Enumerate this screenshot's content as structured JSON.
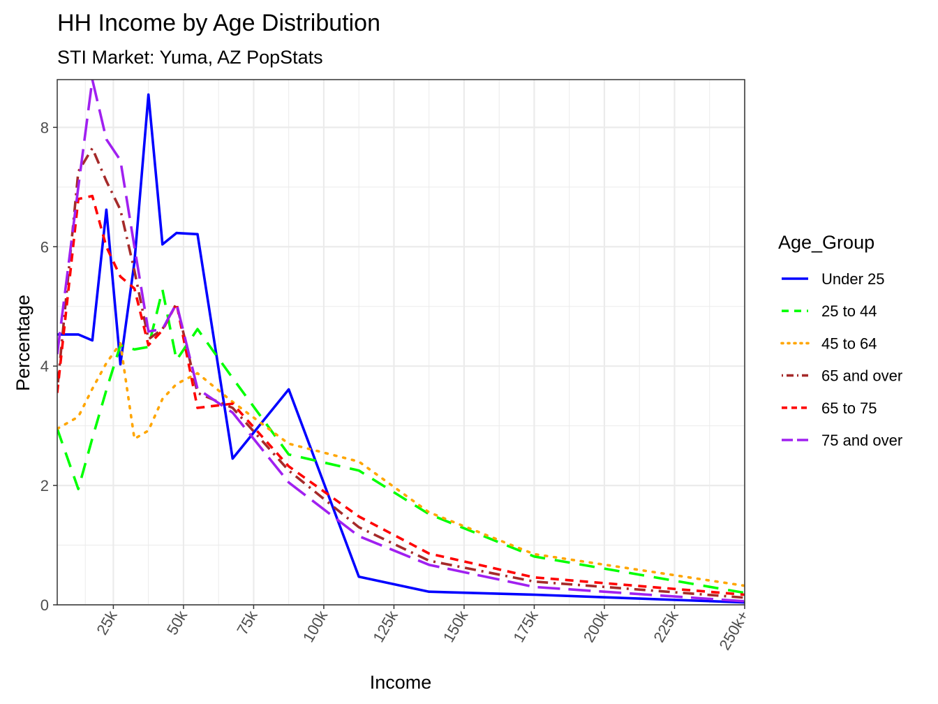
{
  "chart_data": {
    "type": "line",
    "title": "HH Income by Age Distribution",
    "subtitle": "STI Market: Yuma, AZ PopStats",
    "xlabel": "Income",
    "ylabel": "Percentage",
    "xlim": [
      5000,
      250000
    ],
    "ylim": [
      0,
      8.8
    ],
    "x_ticks": [
      25000,
      50000,
      75000,
      100000,
      125000,
      150000,
      175000,
      200000,
      225000,
      250000
    ],
    "x_tick_labels": [
      "25k",
      "50k",
      "75k",
      "100k",
      "125k",
      "150k",
      "175k",
      "200k",
      "225k",
      "250k+"
    ],
    "y_ticks": [
      0,
      2,
      4,
      6,
      8
    ],
    "y_tick_labels": [
      "0",
      "2",
      "4",
      "6",
      "8"
    ],
    "grid": true,
    "legend": {
      "title": "Age_Group",
      "position": "right"
    },
    "x": [
      5000,
      12500,
      17500,
      22500,
      27500,
      32500,
      37500,
      42500,
      47500,
      55000,
      67500,
      87500,
      112500,
      137500,
      175000,
      250000
    ],
    "series": [
      {
        "name": "Under 25",
        "color": "#0000ff",
        "dash": "solid",
        "values": [
          4.53,
          4.53,
          4.43,
          6.62,
          4.03,
          5.74,
          8.55,
          6.04,
          6.23,
          6.21,
          2.45,
          3.61,
          0.47,
          0.22,
          0.17,
          0.04
        ]
      },
      {
        "name": "25 to 44",
        "color": "#00ff00",
        "dash": "dashed",
        "values": [
          2.95,
          1.94,
          2.79,
          3.6,
          4.35,
          4.28,
          4.32,
          5.28,
          4.1,
          4.62,
          3.8,
          2.52,
          2.25,
          1.52,
          0.81,
          0.2
        ]
      },
      {
        "name": "45 to 64",
        "color": "#ffa500",
        "dash": "dotted",
        "values": [
          2.95,
          3.15,
          3.62,
          4.05,
          4.38,
          2.78,
          2.92,
          3.45,
          3.7,
          3.88,
          3.4,
          2.7,
          2.4,
          1.55,
          0.85,
          0.32
        ]
      },
      {
        "name": "65 and over",
        "color": "#a52a2a",
        "dash": "dotdash",
        "values": [
          3.6,
          7.26,
          7.65,
          7.1,
          6.62,
          5.6,
          4.45,
          4.62,
          5.05,
          3.55,
          3.3,
          2.25,
          1.3,
          0.74,
          0.39,
          0.12
        ]
      },
      {
        "name": "65 to 75",
        "color": "#ff0000",
        "dash": "dashed-short",
        "values": [
          3.55,
          6.8,
          6.85,
          6.0,
          5.5,
          5.3,
          4.35,
          4.6,
          5.05,
          3.3,
          3.37,
          2.32,
          1.48,
          0.86,
          0.46,
          0.17
        ]
      },
      {
        "name": "75 and over",
        "color": "#a020f0",
        "dash": "longdash",
        "values": [
          4.2,
          7.0,
          8.8,
          7.8,
          7.45,
          6.0,
          4.58,
          4.62,
          5.05,
          3.62,
          3.22,
          2.05,
          1.15,
          0.67,
          0.3,
          0.06
        ]
      }
    ]
  }
}
